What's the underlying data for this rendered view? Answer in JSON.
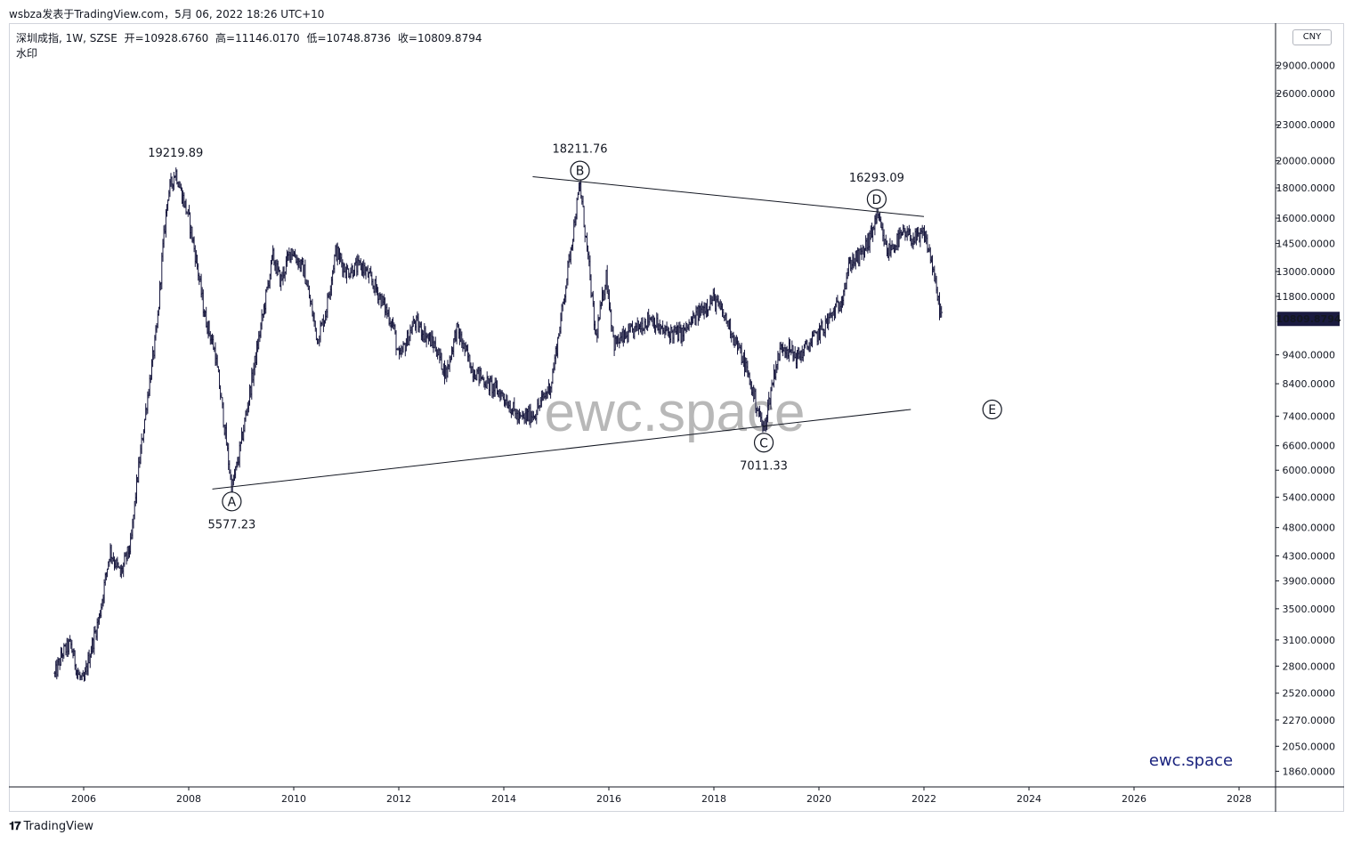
{
  "header": {
    "published": "wsbza发表于TradingView.com，5月 06, 2022 18:26 UTC+10"
  },
  "legend": {
    "symbol": "深圳成指, 1W, SZSE",
    "open": "开=10928.6760",
    "high": "高=11146.0170",
    "low": "低=10748.8736",
    "close": "收=10809.8794",
    "watermark_label": "水印"
  },
  "currency": "CNY",
  "footer": {
    "logo": "TradingView"
  },
  "colors": {
    "candle": "#1a1a40",
    "last_price_bg": "#1a1a40",
    "brand": "#1a237e",
    "watermark": "#b8b8b8"
  },
  "chart_data": {
    "type": "bar",
    "scale": "log",
    "ylim": [
      1750,
      33000
    ],
    "xlim": [
      2005.0,
      2028.8
    ],
    "y_ticks": [
      1860,
      2050,
      2270,
      2520,
      2800,
      3100,
      3500,
      3900,
      4300,
      4800,
      5400,
      6000,
      6600,
      7400,
      8400,
      9400,
      11800,
      13000,
      14500,
      16000,
      18000,
      20000,
      23000,
      26000,
      29000
    ],
    "y_tick_labels": [
      "1860.0000",
      "2050.0000",
      "2270.0000",
      "2520.0000",
      "2800.0000",
      "3100.0000",
      "3500.0000",
      "3900.0000",
      "4300.0000",
      "4800.0000",
      "5400.0000",
      "6000.0000",
      "6600.0000",
      "7400.0000",
      "8400.0000",
      "9400.0000",
      "11800.0000",
      "13000.0000",
      "14500.0000",
      "16000.0000",
      "18000.0000",
      "20000.0000",
      "23000.0000",
      "26000.0000",
      "29000.0000"
    ],
    "x_ticks": [
      2006,
      2008,
      2010,
      2012,
      2014,
      2016,
      2018,
      2020,
      2022,
      2024,
      2026,
      2028
    ],
    "x_tick_labels": [
      "2006",
      "2008",
      "2010",
      "2012",
      "2014",
      "2016",
      "2018",
      "2020",
      "2022",
      "2024",
      "2026",
      "2028"
    ],
    "last_price": {
      "value": 10809.8794,
      "label": "10809.8794"
    },
    "price_path": [
      [
        2005.45,
        2700
      ],
      [
        2005.6,
        2950
      ],
      [
        2005.75,
        3050
      ],
      [
        2005.9,
        2700
      ],
      [
        2006.0,
        2620
      ],
      [
        2006.1,
        2900
      ],
      [
        2006.3,
        3400
      ],
      [
        2006.5,
        4400
      ],
      [
        2006.7,
        4000
      ],
      [
        2006.9,
        4500
      ],
      [
        2007.0,
        5600
      ],
      [
        2007.2,
        7800
      ],
      [
        2007.4,
        10500
      ],
      [
        2007.5,
        14000
      ],
      [
        2007.6,
        17500
      ],
      [
        2007.75,
        19219.89
      ],
      [
        2007.85,
        17800
      ],
      [
        2008.0,
        16000
      ],
      [
        2008.15,
        13500
      ],
      [
        2008.3,
        11000
      ],
      [
        2008.5,
        9500
      ],
      [
        2008.65,
        7500
      ],
      [
        2008.82,
        5577.23
      ],
      [
        2008.95,
        6300
      ],
      [
        2009.2,
        8500
      ],
      [
        2009.45,
        11500
      ],
      [
        2009.6,
        13800
      ],
      [
        2009.75,
        12500
      ],
      [
        2009.95,
        14200
      ],
      [
        2010.2,
        13000
      ],
      [
        2010.45,
        10000
      ],
      [
        2010.6,
        11000
      ],
      [
        2010.8,
        14100
      ],
      [
        2011.0,
        13000
      ],
      [
        2011.3,
        13300
      ],
      [
        2011.6,
        12000
      ],
      [
        2011.9,
        10500
      ],
      [
        2012.0,
        9200
      ],
      [
        2012.3,
        10700
      ],
      [
        2012.7,
        9700
      ],
      [
        2012.9,
        8700
      ],
      [
        2013.1,
        10400
      ],
      [
        2013.4,
        8900
      ],
      [
        2013.7,
        8400
      ],
      [
        2014.0,
        8000
      ],
      [
        2014.3,
        7300
      ],
      [
        2014.6,
        7500
      ],
      [
        2014.9,
        8400
      ],
      [
        2015.1,
        11000
      ],
      [
        2015.3,
        14800
      ],
      [
        2015.45,
        18211.76
      ],
      [
        2015.6,
        13800
      ],
      [
        2015.75,
        10000
      ],
      [
        2015.95,
        12800
      ],
      [
        2016.1,
        9800
      ],
      [
        2016.4,
        10200
      ],
      [
        2016.8,
        10900
      ],
      [
        2017.0,
        10300
      ],
      [
        2017.4,
        10200
      ],
      [
        2017.8,
        11300
      ],
      [
        2018.0,
        11700
      ],
      [
        2018.3,
        10500
      ],
      [
        2018.6,
        9000
      ],
      [
        2018.8,
        7800
      ],
      [
        2018.95,
        7011.33
      ],
      [
        2019.15,
        8800
      ],
      [
        2019.3,
        9800
      ],
      [
        2019.6,
        9300
      ],
      [
        2019.9,
        10000
      ],
      [
        2020.1,
        10500
      ],
      [
        2020.4,
        11500
      ],
      [
        2020.6,
        13500
      ],
      [
        2020.8,
        13800
      ],
      [
        2021.0,
        15000
      ],
      [
        2021.1,
        16293.09
      ],
      [
        2021.3,
        14000
      ],
      [
        2021.6,
        15000
      ],
      [
        2021.9,
        14700
      ],
      [
        2022.0,
        15100
      ],
      [
        2022.15,
        13500
      ],
      [
        2022.25,
        11800
      ],
      [
        2022.35,
        10809.8794
      ]
    ],
    "annotations": [
      {
        "label": "19219.89",
        "x": 2007.75,
        "y": 19219.89,
        "pos": "above"
      },
      {
        "label": "5577.23",
        "x": 2008.82,
        "y": 5577.23,
        "pos": "below"
      },
      {
        "label": "18211.76",
        "x": 2015.45,
        "y": 18211.76,
        "pos": "above"
      },
      {
        "label": "7011.33",
        "x": 2018.95,
        "y": 7011.33,
        "pos": "below"
      },
      {
        "label": "16293.09",
        "x": 2021.1,
        "y": 16293.09,
        "pos": "above"
      }
    ],
    "waves": [
      {
        "label": "A",
        "x": 2008.82,
        "y": 5577.23,
        "pos": "below"
      },
      {
        "label": "B",
        "x": 2015.45,
        "y": 18211.76,
        "pos": "above"
      },
      {
        "label": "C",
        "x": 2018.95,
        "y": 7011.33,
        "pos": "below"
      },
      {
        "label": "D",
        "x": 2021.1,
        "y": 16293.09,
        "pos": "above"
      },
      {
        "label": "E",
        "x": 2023.3,
        "y": 7600,
        "pos": "center"
      }
    ],
    "trendlines": [
      {
        "x1": 2008.45,
        "y1": 5577.23,
        "x2": 2021.75,
        "y2": 7600
      },
      {
        "x1": 2014.55,
        "y1": 18800,
        "x2": 2022.0,
        "y2": 16100
      }
    ],
    "watermark_text": "ewc.space",
    "brand_text": "ewc.space"
  }
}
